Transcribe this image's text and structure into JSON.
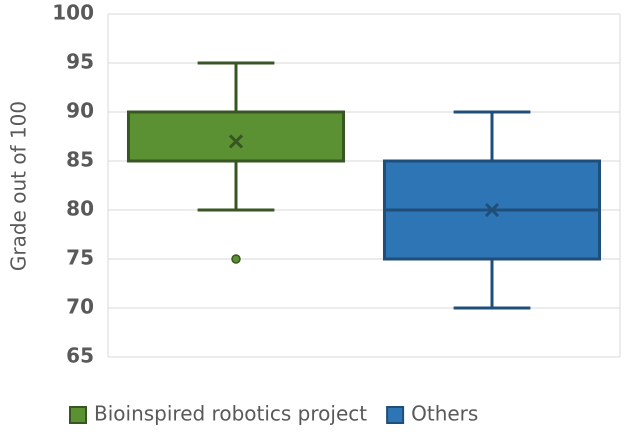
{
  "chart_data": {
    "type": "box",
    "ylabel": "Grade out of 100",
    "ylim": [
      65,
      100
    ],
    "yticks": [
      65,
      70,
      75,
      80,
      85,
      90,
      95,
      100
    ],
    "grid": true,
    "series": [
      {
        "name": "Bioinspired robotics project",
        "color": "#5b9133",
        "stroke": "#375623",
        "min": 80,
        "q1": 85,
        "median": 90,
        "q3": 90,
        "max": 95,
        "mean": 87,
        "outliers": [
          75
        ]
      },
      {
        "name": "Others",
        "color": "#2e75b6",
        "stroke": "#1f4e79",
        "min": 70,
        "q1": 75,
        "median": 80,
        "q3": 85,
        "max": 90,
        "mean": 80,
        "outliers": []
      }
    ]
  }
}
